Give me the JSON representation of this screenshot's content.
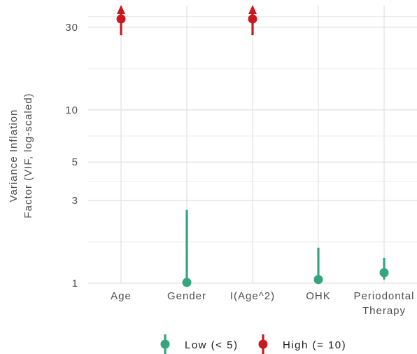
{
  "chart_data": {
    "type": "dot-interval",
    "ylabel": [
      "Variance Inflation",
      "Factor (VIF, log-scaled)"
    ],
    "yscale": "log",
    "ylim": [
      1,
      40
    ],
    "yticks": [
      1,
      3,
      5,
      10,
      30
    ],
    "grid": true,
    "categories": [
      "Age",
      "Gender",
      "I(Age^2)",
      "OHK",
      "Periodontal\nTherapy"
    ],
    "points": [
      {
        "category": "Age",
        "vif": 33.5,
        "ci_low": 27.0,
        "ci_high": 40,
        "group": "high",
        "ci_truncated": true
      },
      {
        "category": "Gender",
        "vif": 1.01,
        "ci_low": 1.0,
        "ci_high": 2.65,
        "group": "low"
      },
      {
        "category": "I(Age^2)",
        "vif": 33.5,
        "ci_low": 27.0,
        "ci_high": 40,
        "group": "high",
        "ci_truncated": true
      },
      {
        "category": "OHK",
        "vif": 1.05,
        "ci_low": 1.0,
        "ci_high": 1.6,
        "group": "low"
      },
      {
        "category": "Periodontal\nTherapy",
        "vif": 1.15,
        "ci_low": 1.05,
        "ci_high": 1.4,
        "group": "low"
      }
    ],
    "legend": {
      "position": "bottom",
      "items": [
        {
          "key": "low",
          "label": "Low (< 5)",
          "color": "#35a57f"
        },
        {
          "key": "high",
          "label": "High (= 10)",
          "color": "#c9191e"
        }
      ]
    }
  }
}
